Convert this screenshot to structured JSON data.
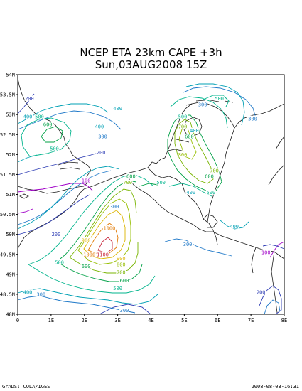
{
  "header": {
    "title_line1": "NCEP ETA 23km CAPE +3h",
    "title_line2": "Sun,03AUG2008 15Z"
  },
  "axes": {
    "x_ticks": [
      "0",
      "1E",
      "2E",
      "3E",
      "4E",
      "5E",
      "6E",
      "7E",
      "8E"
    ],
    "y_ticks": [
      "54N",
      "53.5N",
      "53N",
      "52.5N",
      "52N",
      "51.5N",
      "51N",
      "50.5N",
      "50N",
      "49.5N",
      "49N",
      "48.5N",
      "48N"
    ]
  },
  "contour_levels": {
    "100": {
      "color": "#a000c8"
    },
    "200": {
      "color": "#2d3cb4"
    },
    "300": {
      "color": "#1e78c8"
    },
    "400": {
      "color": "#00a0b4"
    },
    "500": {
      "color": "#00b48c"
    },
    "600": {
      "color": "#00a046"
    },
    "700": {
      "color": "#78b400"
    },
    "800": {
      "color": "#96be00"
    },
    "900": {
      "color": "#dcb400"
    },
    "1000": {
      "color": "#e17800"
    },
    "1100": {
      "color": "#c8283c"
    }
  },
  "contour_labels": [
    {
      "text": "200",
      "lon": 0.35,
      "lat": 53.4
    },
    {
      "text": "400",
      "lon": 0.3,
      "lat": 52.95
    },
    {
      "text": "500",
      "lon": 0.65,
      "lat": 52.95
    },
    {
      "text": "600",
      "lon": 0.9,
      "lat": 52.75
    },
    {
      "text": "400",
      "lon": 3.0,
      "lat": 53.15
    },
    {
      "text": "400",
      "lon": 2.45,
      "lat": 52.7
    },
    {
      "text": "300",
      "lon": 2.55,
      "lat": 52.45
    },
    {
      "text": "500",
      "lon": 1.1,
      "lat": 52.15
    },
    {
      "text": "200",
      "lon": 2.5,
      "lat": 52.05
    },
    {
      "text": "100",
      "lon": 2.05,
      "lat": 51.35
    },
    {
      "text": "300",
      "lon": 5.55,
      "lat": 53.25
    },
    {
      "text": "500",
      "lon": 6.05,
      "lat": 53.4
    },
    {
      "text": "300",
      "lon": 7.05,
      "lat": 52.9
    },
    {
      "text": "500",
      "lon": 4.95,
      "lat": 52.95
    },
    {
      "text": "700",
      "lon": 4.95,
      "lat": 52.7
    },
    {
      "text": "400",
      "lon": 5.3,
      "lat": 52.6
    },
    {
      "text": "600",
      "lon": 5.15,
      "lat": 52.45
    },
    {
      "text": "800",
      "lon": 4.95,
      "lat": 52.0
    },
    {
      "text": "700",
      "lon": 5.9,
      "lat": 51.6
    },
    {
      "text": "600",
      "lon": 5.75,
      "lat": 51.45
    },
    {
      "text": "500",
      "lon": 4.3,
      "lat": 51.3
    },
    {
      "text": "600",
      "lon": 3.4,
      "lat": 51.45
    },
    {
      "text": "700",
      "lon": 3.3,
      "lat": 51.3
    },
    {
      "text": "400",
      "lon": 5.2,
      "lat": 51.05
    },
    {
      "text": "500",
      "lon": 5.8,
      "lat": 51.05
    },
    {
      "text": "300",
      "lon": 2.9,
      "lat": 50.7
    },
    {
      "text": "200",
      "lon": 1.15,
      "lat": 50.0
    },
    {
      "text": "1000",
      "lon": 2.75,
      "lat": 50.15
    },
    {
      "text": "900",
      "lon": 2.05,
      "lat": 49.85
    },
    {
      "text": "1000",
      "lon": 2.15,
      "lat": 49.5
    },
    {
      "text": "1100",
      "lon": 2.55,
      "lat": 49.5
    },
    {
      "text": "900",
      "lon": 3.1,
      "lat": 49.4
    },
    {
      "text": "800",
      "lon": 3.1,
      "lat": 49.25
    },
    {
      "text": "700",
      "lon": 3.1,
      "lat": 49.05
    },
    {
      "text": "600",
      "lon": 3.2,
      "lat": 48.85
    },
    {
      "text": "500",
      "lon": 1.25,
      "lat": 49.3
    },
    {
      "text": "600",
      "lon": 2.05,
      "lat": 49.2
    },
    {
      "text": "500",
      "lon": 3.0,
      "lat": 48.65
    },
    {
      "text": "400",
      "lon": 0.3,
      "lat": 48.55
    },
    {
      "text": "300",
      "lon": 0.7,
      "lat": 48.5
    },
    {
      "text": "300",
      "lon": 3.2,
      "lat": 48.1
    },
    {
      "text": "300",
      "lon": 5.1,
      "lat": 49.75
    },
    {
      "text": "400",
      "lon": 6.5,
      "lat": 50.2
    },
    {
      "text": "200",
      "lon": 7.3,
      "lat": 48.55
    },
    {
      "text": "100",
      "lon": 7.45,
      "lat": 49.55
    }
  ],
  "footer": {
    "credit": "GrADS: COLA/IGES",
    "timestamp": "2008-08-03-16:31"
  }
}
